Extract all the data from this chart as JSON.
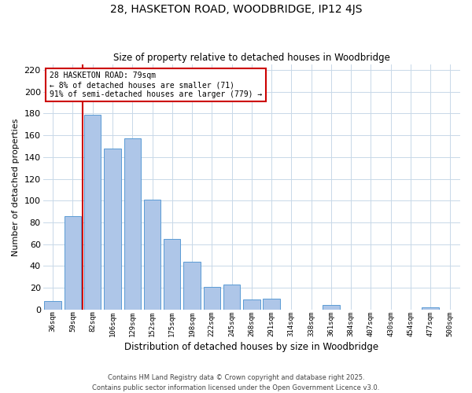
{
  "title": "28, HASKETON ROAD, WOODBRIDGE, IP12 4JS",
  "subtitle": "Size of property relative to detached houses in Woodbridge",
  "xlabel": "Distribution of detached houses by size in Woodbridge",
  "ylabel": "Number of detached properties",
  "bar_labels": [
    "36sqm",
    "59sqm",
    "82sqm",
    "106sqm",
    "129sqm",
    "152sqm",
    "175sqm",
    "198sqm",
    "222sqm",
    "245sqm",
    "268sqm",
    "291sqm",
    "314sqm",
    "338sqm",
    "361sqm",
    "384sqm",
    "407sqm",
    "430sqm",
    "454sqm",
    "477sqm",
    "500sqm"
  ],
  "bar_values": [
    8,
    86,
    179,
    148,
    157,
    101,
    65,
    44,
    21,
    23,
    9,
    10,
    0,
    0,
    4,
    0,
    0,
    0,
    0,
    2,
    0
  ],
  "bar_color": "#aec6e8",
  "bar_edge_color": "#5b9bd5",
  "vline_color": "#cc0000",
  "annotation_box_text": "28 HASKETON ROAD: 79sqm\n← 8% of detached houses are smaller (71)\n91% of semi-detached houses are larger (779) →",
  "annotation_box_facecolor": "#ffffff",
  "annotation_box_edgecolor": "#cc0000",
  "ylim": [
    0,
    225
  ],
  "yticks": [
    0,
    20,
    40,
    60,
    80,
    100,
    120,
    140,
    160,
    180,
    200,
    220
  ],
  "footer_line1": "Contains HM Land Registry data © Crown copyright and database right 2025.",
  "footer_line2": "Contains public sector information licensed under the Open Government Licence v3.0.",
  "background_color": "#ffffff",
  "grid_color": "#c8d8e8"
}
